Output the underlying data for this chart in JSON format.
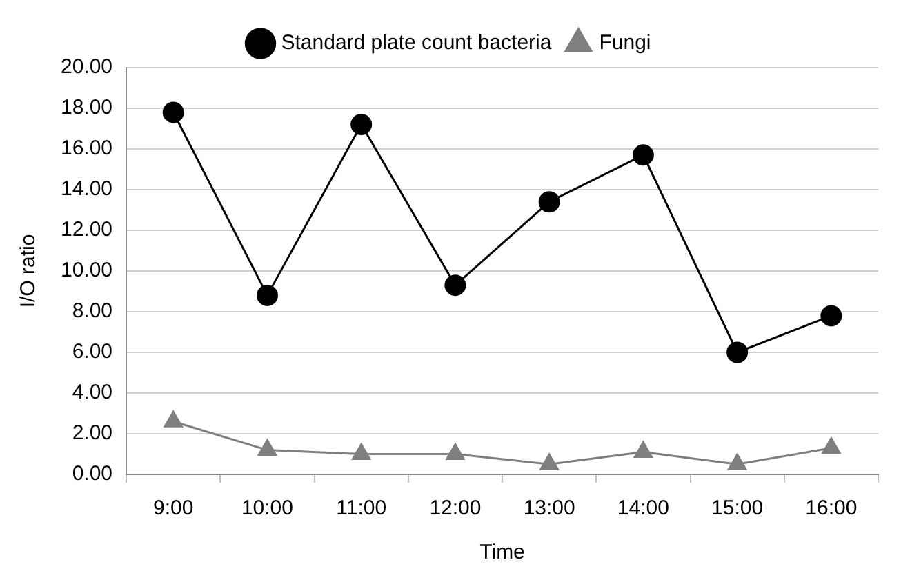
{
  "chart_data": {
    "type": "line",
    "xlabel": "Time",
    "ylabel": "I/O ratio",
    "categories": [
      "9:00",
      "10:00",
      "11:00",
      "12:00",
      "13:00",
      "14:00",
      "15:00",
      "16:00"
    ],
    "series": [
      {
        "name": "Standard plate count bacteria",
        "color": "#000000",
        "marker": "circle",
        "values": [
          17.8,
          8.8,
          17.2,
          9.3,
          13.4,
          15.7,
          6.0,
          7.8
        ]
      },
      {
        "name": "Fungi",
        "color": "#7f7f7f",
        "marker": "triangle",
        "values": [
          2.6,
          1.2,
          1.0,
          1.0,
          0.5,
          1.1,
          0.5,
          1.3
        ]
      }
    ],
    "ylim": [
      0,
      20
    ],
    "yticks": [
      {
        "value": 0,
        "label": "0.00"
      },
      {
        "value": 2,
        "label": "2.00"
      },
      {
        "value": 4,
        "label": "4.00"
      },
      {
        "value": 6,
        "label": "6.00"
      },
      {
        "value": 8,
        "label": "8.00"
      },
      {
        "value": 10,
        "label": "10.00"
      },
      {
        "value": 12,
        "label": "12.00"
      },
      {
        "value": 14,
        "label": "14.00"
      },
      {
        "value": 16,
        "label": "16.00"
      },
      {
        "value": 18,
        "label": "18.00"
      },
      {
        "value": 20,
        "label": "20.00"
      }
    ],
    "grid": "y",
    "legend": "top",
    "line_style": "solid"
  }
}
